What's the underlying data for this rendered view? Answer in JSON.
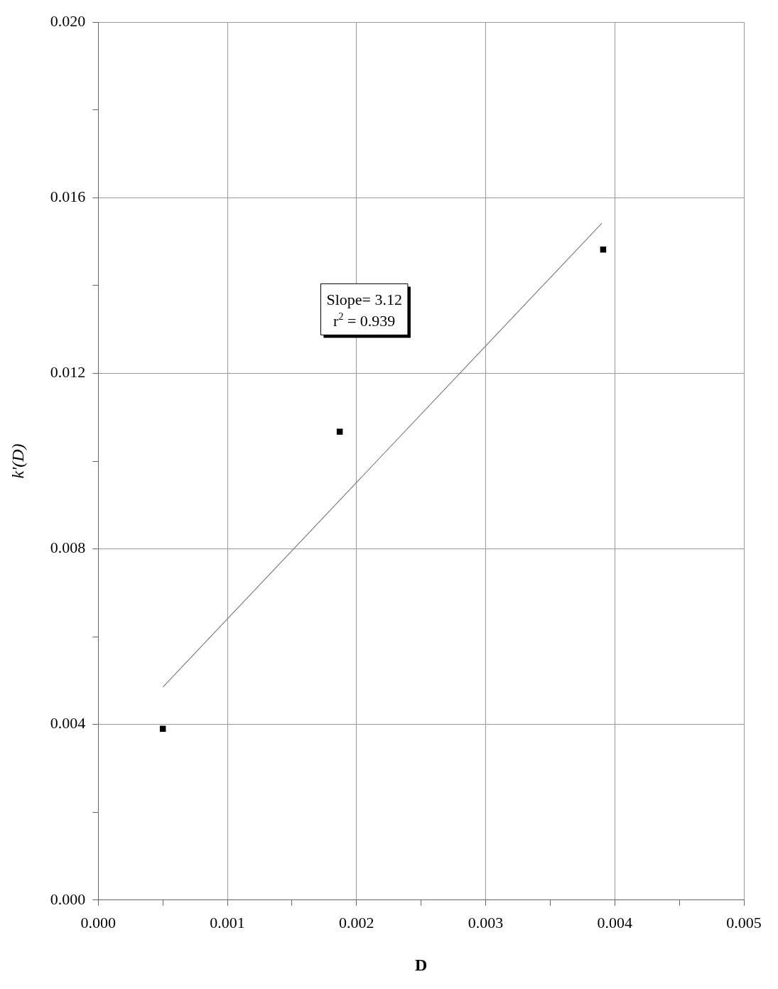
{
  "chart_data": {
    "type": "scatter",
    "xlabel": "D",
    "ylabel": "k'(D)",
    "series": [
      {
        "color": "#000000",
        "x": [
          0.0005,
          0.00187,
          0.00391
        ],
        "values": [
          0.0039,
          0.01067,
          0.01482
        ]
      },
      {
        "type": "line",
        "color": "#808080",
        "marker": "none",
        "x": [
          0.0005,
          0.0039
        ],
        "values": [
          0.00485,
          0.01542
        ]
      }
    ],
    "xlim": [
      0,
      0.005
    ],
    "ylim": [
      0,
      0.02
    ],
    "xticks": [
      {
        "value": 0,
        "label": "0.000"
      },
      {
        "value": 0.0005,
        "label": null
      },
      {
        "value": 0.001,
        "label": "0.001"
      },
      {
        "value": 0.0015,
        "label": null
      },
      {
        "value": 0.002,
        "label": "0.002"
      },
      {
        "value": 0.0025,
        "label": null
      },
      {
        "value": 0.003,
        "label": "0.003"
      },
      {
        "value": 0.0035,
        "label": null
      },
      {
        "value": 0.004,
        "label": "0.004"
      },
      {
        "value": 0.0045,
        "label": null
      },
      {
        "value": 0.005,
        "label": "0.005"
      }
    ],
    "yticks": [
      {
        "value": 0,
        "label": "0.000"
      },
      {
        "value": 0.002,
        "label": null
      },
      {
        "value": 0.004,
        "label": "0.004"
      },
      {
        "value": 0.006,
        "label": null
      },
      {
        "value": 0.008,
        "label": "0.008"
      },
      {
        "value": 0.01,
        "label": null
      },
      {
        "value": 0.012,
        "label": "0.012"
      },
      {
        "value": 0.014,
        "label": null
      },
      {
        "value": 0.016,
        "label": "0.016"
      },
      {
        "value": 0.018,
        "label": null
      },
      {
        "value": 0.02,
        "label": "0.020"
      }
    ],
    "grid": true,
    "marker": "square",
    "legend": false,
    "annotations": [
      "Slope= 3.12",
      "r$^{2}$ = 0.939"
    ]
  }
}
